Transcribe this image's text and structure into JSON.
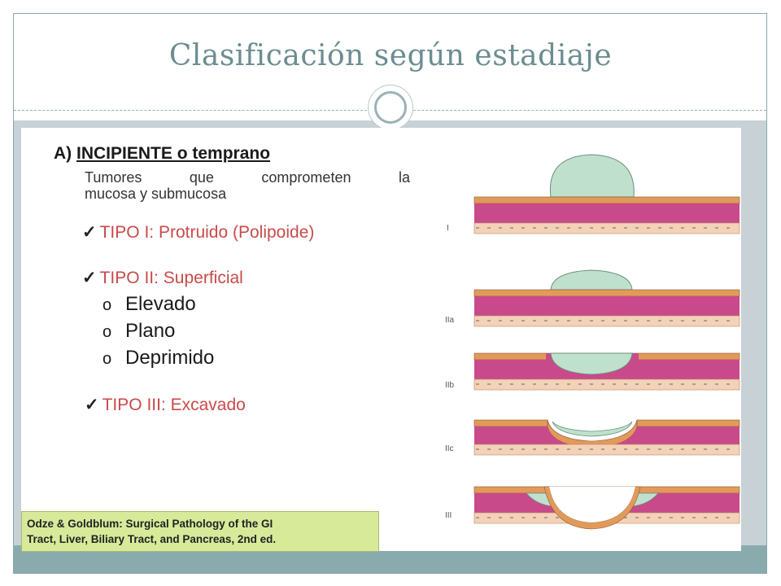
{
  "slide": {
    "title": "Clasificación según estadiaje"
  },
  "figure": {
    "heading_prefix": "A)",
    "heading": "INCIPIENTE o temprano",
    "description_line1": "Tumores que comprometen la",
    "description_line2": "mucosa y submucosa",
    "types": [
      {
        "check": "✓",
        "label": "TIPO I: Protruido (Polipoide)"
      },
      {
        "check": "✓",
        "label": "TIPO II: Superficial"
      },
      {
        "check": "✓",
        "label": "TIPO III: Excavado"
      }
    ],
    "subtypes": [
      {
        "bullet": "o",
        "label": "Elevado"
      },
      {
        "bullet": "o",
        "label": "Plano"
      },
      {
        "bullet": "o",
        "label": "Deprimido"
      }
    ],
    "diagram_labels": [
      "I",
      "IIa",
      "IIb",
      "IIc",
      "III"
    ],
    "reference_line1": "Odze & Goldblum: Surgical Pathology of the GI",
    "reference_line2": "Tract, Liver, Biliary Tract, and Pancreas, 2nd ed.",
    "colors": {
      "tumor": "#bfe0cd",
      "mucosa": "#c94a8a",
      "surface": "#e29a5a",
      "submucosa": "#f3d2b8",
      "type_text": "#c94a4a",
      "reference_bg": "#d7ea9a"
    }
  }
}
